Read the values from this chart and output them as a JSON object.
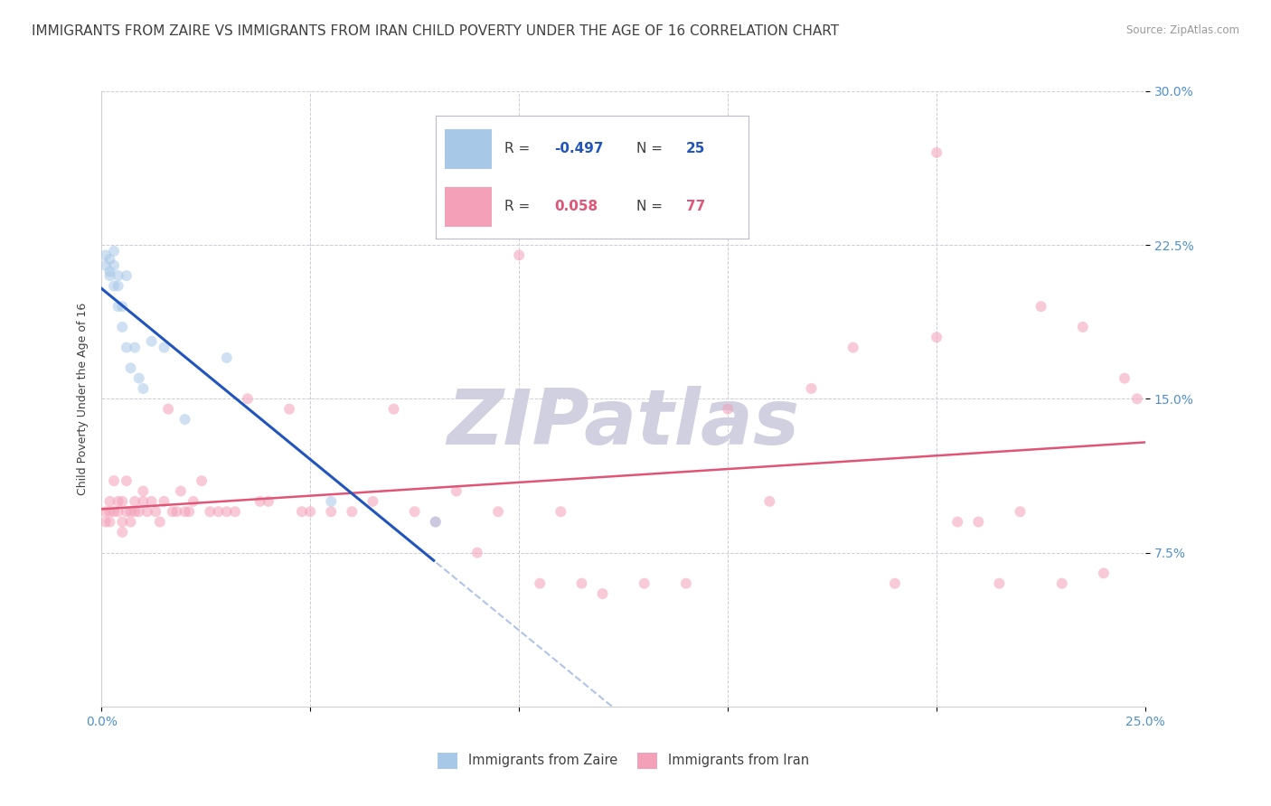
{
  "title": "IMMIGRANTS FROM ZAIRE VS IMMIGRANTS FROM IRAN CHILD POVERTY UNDER THE AGE OF 16 CORRELATION CHART",
  "source": "Source: ZipAtlas.com",
  "ylabel_label": "Child Poverty Under the Age of 16",
  "legend_labels": [
    "Immigrants from Zaire",
    "Immigrants from Iran"
  ],
  "zaire_color": "#a8c8e8",
  "iran_color": "#f4a0b8",
  "zaire_line_color": "#2255bb",
  "iran_line_color": "#e05575",
  "zaire_R": "-0.497",
  "zaire_N": "25",
  "iran_R": "0.058",
  "iran_N": "77",
  "watermark": "ZIPatlas",
  "zaire_x": [
    0.001,
    0.001,
    0.002,
    0.002,
    0.002,
    0.003,
    0.003,
    0.003,
    0.004,
    0.004,
    0.004,
    0.005,
    0.005,
    0.006,
    0.006,
    0.007,
    0.008,
    0.009,
    0.01,
    0.012,
    0.015,
    0.02,
    0.03,
    0.055,
    0.08
  ],
  "zaire_y": [
    0.215,
    0.22,
    0.21,
    0.218,
    0.212,
    0.205,
    0.215,
    0.222,
    0.195,
    0.21,
    0.205,
    0.185,
    0.195,
    0.175,
    0.21,
    0.165,
    0.175,
    0.16,
    0.155,
    0.178,
    0.175,
    0.14,
    0.17,
    0.1,
    0.09
  ],
  "iran_x": [
    0.001,
    0.001,
    0.002,
    0.002,
    0.002,
    0.003,
    0.003,
    0.004,
    0.004,
    0.005,
    0.005,
    0.005,
    0.006,
    0.006,
    0.007,
    0.007,
    0.008,
    0.008,
    0.009,
    0.01,
    0.01,
    0.011,
    0.012,
    0.013,
    0.014,
    0.015,
    0.016,
    0.017,
    0.018,
    0.019,
    0.02,
    0.021,
    0.022,
    0.024,
    0.026,
    0.028,
    0.03,
    0.032,
    0.035,
    0.038,
    0.04,
    0.045,
    0.048,
    0.05,
    0.055,
    0.06,
    0.065,
    0.07,
    0.075,
    0.08,
    0.085,
    0.09,
    0.095,
    0.1,
    0.105,
    0.11,
    0.115,
    0.12,
    0.13,
    0.14,
    0.15,
    0.16,
    0.17,
    0.18,
    0.19,
    0.2,
    0.21,
    0.215,
    0.22,
    0.225,
    0.23,
    0.235,
    0.24,
    0.245,
    0.248,
    0.2,
    0.205
  ],
  "iran_y": [
    0.09,
    0.095,
    0.1,
    0.095,
    0.09,
    0.11,
    0.095,
    0.1,
    0.095,
    0.09,
    0.1,
    0.085,
    0.11,
    0.095,
    0.09,
    0.095,
    0.1,
    0.095,
    0.095,
    0.1,
    0.105,
    0.095,
    0.1,
    0.095,
    0.09,
    0.1,
    0.145,
    0.095,
    0.095,
    0.105,
    0.095,
    0.095,
    0.1,
    0.11,
    0.095,
    0.095,
    0.095,
    0.095,
    0.15,
    0.1,
    0.1,
    0.145,
    0.095,
    0.095,
    0.095,
    0.095,
    0.1,
    0.145,
    0.095,
    0.09,
    0.105,
    0.075,
    0.095,
    0.22,
    0.06,
    0.095,
    0.06,
    0.055,
    0.06,
    0.06,
    0.145,
    0.1,
    0.155,
    0.175,
    0.06,
    0.27,
    0.09,
    0.06,
    0.095,
    0.195,
    0.06,
    0.185,
    0.065,
    0.16,
    0.15,
    0.18,
    0.09
  ],
  "xmin": 0.0,
  "xmax": 0.25,
  "ymin": 0.0,
  "ymax": 0.3,
  "background_color": "#ffffff",
  "title_color": "#404040",
  "tick_label_color": "#5090d0",
  "grid_color": "#ccccdd",
  "title_fontsize": 11,
  "axis_label_fontsize": 9,
  "tick_fontsize": 10,
  "dot_size": 75,
  "dot_alpha": 0.55,
  "watermark_color": "#d0d0e0",
  "watermark_fontsize": 62
}
